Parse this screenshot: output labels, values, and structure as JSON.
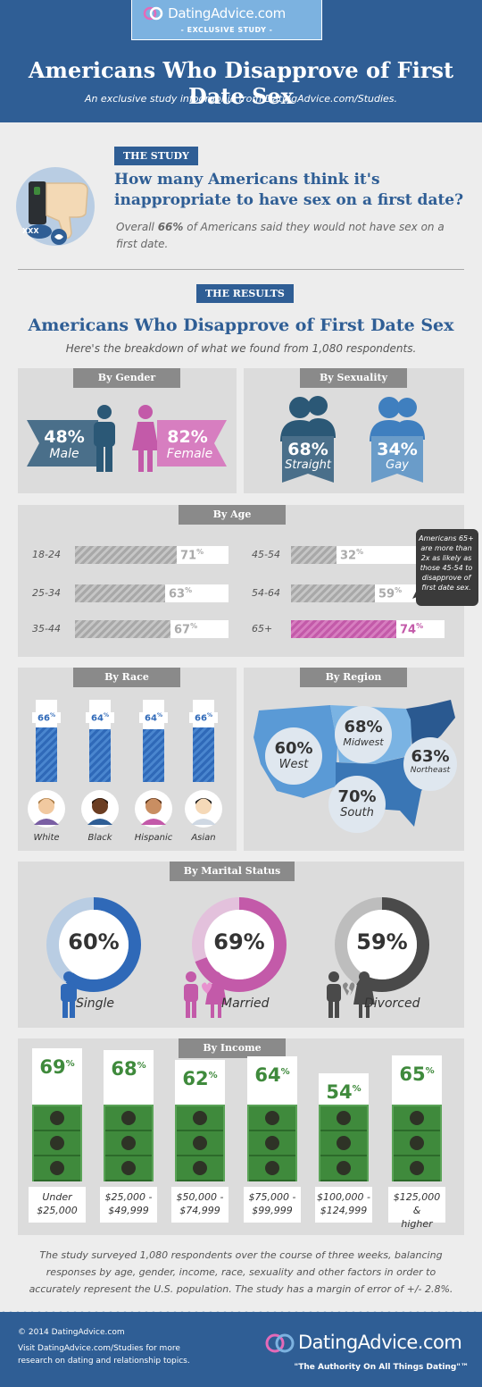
{
  "header": {
    "brand": "DatingAdvice.com",
    "badge": "- EXCLUSIVE STUDY -",
    "title": "Americans Who Disapprove of First Date Sex",
    "subtitle": "An exclusive study infographic from DatingAdvice.com/Studies."
  },
  "study": {
    "tag": "THE STUDY",
    "question": "How many Americans think it's inappropriate to have sex on a first date?",
    "overall_pre": "Overall ",
    "overall_pct": "66%",
    "overall_post": " of Americans said they would not have sex on a first date.",
    "icon_text": "XXX"
  },
  "results": {
    "tag": "THE RESULTS",
    "title": "Americans Who Disapprove of First Date Sex",
    "subtitle": "Here's the breakdown of what we found from 1,080 respondents."
  },
  "gender": {
    "tab": "By Gender",
    "male": {
      "pct": "48%",
      "label": "Male"
    },
    "female": {
      "pct": "82%",
      "label": "Female"
    }
  },
  "sexuality": {
    "tab": "By Sexuality",
    "straight": {
      "pct": "68%",
      "label": "Straight"
    },
    "gay": {
      "pct": "34%",
      "label": "Gay"
    }
  },
  "age": {
    "tab": "By Age",
    "left": [
      {
        "label": "18-24",
        "value": "71",
        "pct": 0.71
      },
      {
        "label": "25-34",
        "value": "63",
        "pct": 0.63
      },
      {
        "label": "35-44",
        "value": "67",
        "pct": 0.67
      }
    ],
    "right": [
      {
        "label": "45-54",
        "value": "32",
        "pct": 0.32
      },
      {
        "label": "54-64",
        "value": "59",
        "pct": 0.59
      },
      {
        "label": "65+",
        "value": "74",
        "pct": 0.74
      }
    ],
    "pct_sign": "%",
    "note": "Americans 65+ are more than 2x as likely as those 45-54 to disapprove of first date sex."
  },
  "race": {
    "tab": "By Race",
    "items": [
      {
        "label": "White",
        "value": "66",
        "pct": 0.66
      },
      {
        "label": "Black",
        "value": "64",
        "pct": 0.64
      },
      {
        "label": "Hispanic",
        "value": "64",
        "pct": 0.64
      },
      {
        "label": "Asian",
        "value": "66",
        "pct": 0.66
      }
    ],
    "pct_sign": "%"
  },
  "region": {
    "tab": "By Region",
    "west": {
      "pct": "60%",
      "label": "West"
    },
    "midwest": {
      "pct": "68%",
      "label": "Midwest"
    },
    "northeast": {
      "pct": "63%",
      "label": "Northeast"
    },
    "south": {
      "pct": "70%",
      "label": "South"
    }
  },
  "marital": {
    "tab": "By Marital Status",
    "items": [
      {
        "pct_text": "60%",
        "pct": 0.6,
        "label": "Single",
        "color": "#2f69b8",
        "track": "#b9cde3"
      },
      {
        "pct_text": "69%",
        "pct": 0.69,
        "label": "Married",
        "color": "#c35aa9",
        "track": "#e3c1dc"
      },
      {
        "pct_text": "59%",
        "pct": 0.59,
        "label": "Divorced",
        "color": "#4a4a4a",
        "track": "#bdbdbd"
      }
    ]
  },
  "income": {
    "tab": "By Income",
    "items": [
      {
        "value": "69",
        "line1": "Under",
        "line2": "$25,000",
        "pct": 0.69
      },
      {
        "value": "68",
        "line1": "$25,000 -",
        "line2": "$49,999",
        "pct": 0.68
      },
      {
        "value": "62",
        "line1": "$50,000 -",
        "line2": "$74,999",
        "pct": 0.62
      },
      {
        "value": "64",
        "line1": "$75,000 -",
        "line2": "$99,999",
        "pct": 0.64
      },
      {
        "value": "54",
        "line1": "$100,000 -",
        "line2": "$124,999",
        "pct": 0.54
      },
      {
        "value": "65",
        "line1": "$125,000 &",
        "line2": "higher",
        "pct": 0.65
      }
    ],
    "pct_sign": "%"
  },
  "methodology": "The study surveyed 1,080 respondents over the course of three weeks, balancing responses by age, gender, income, race, sexuality and other factors in order to accurately represent the U.S. population. The study has a margin of error of +/- 2.8%.",
  "footer": {
    "copyright": "© 2014 DatingAdvice.com",
    "visit": "Visit DatingAdvice.com/Studies for more research on dating and relationship topics.",
    "brand": "DatingAdvice.com",
    "tagline": "\"The Authority On All Things Dating\"™"
  },
  "colors": {
    "navy": "#2f5e95",
    "blue": "#2f69b8",
    "pink": "#c35aa9",
    "slate": "#4a6f8a",
    "green": "#3f8a3c"
  }
}
